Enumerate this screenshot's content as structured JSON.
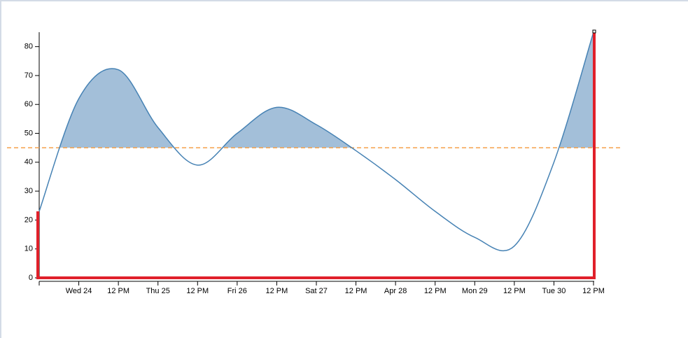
{
  "chart_data": {
    "type": "line",
    "categories": [
      null,
      "Wed 24",
      "12 PM",
      "Thu 25",
      "12 PM",
      "Fri 26",
      "12 PM",
      "Sat 27",
      "12 PM",
      "Apr 28",
      "12 PM",
      "Mon 29",
      "12 PM",
      "Tue 30",
      "12 PM"
    ],
    "values": [
      23,
      62,
      72,
      52,
      39,
      50,
      59,
      53,
      44,
      34,
      23,
      14,
      11,
      40,
      85
    ],
    "color": "#4682b4",
    "area_color": "#a3bfd9",
    "threshold": 45,
    "threshold_color": "#f5a04a",
    "highlight_color": "#e0202a",
    "ylim": [
      0,
      85
    ],
    "yticks": [
      0,
      10,
      20,
      30,
      40,
      50,
      60,
      70,
      80
    ],
    "grid": false
  }
}
